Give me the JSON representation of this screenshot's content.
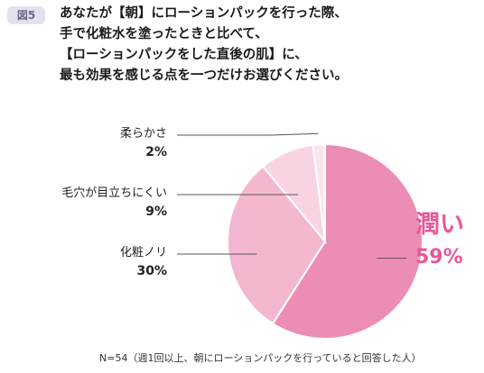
{
  "header": {
    "figure_label": "図5",
    "question_lines": [
      "あなたが【朝】にローションパックを行った際、",
      "手で化粧水を塗ったときと比べて、",
      "【ローションパックをした直後の肌】に、",
      "最も効果を感じる点を一つだけお選びください。"
    ]
  },
  "chart_data": {
    "type": "pie",
    "title": "",
    "slices": [
      {
        "label": "潤い",
        "value": 59,
        "value_label": "59%",
        "color": "#ec8db6"
      },
      {
        "label": "化粧ノリ",
        "value": 30,
        "value_label": "30%",
        "color": "#f3b8cf"
      },
      {
        "label": "毛穴が目立ちにくい",
        "value": 9,
        "value_label": "9%",
        "color": "#f8d4e2"
      },
      {
        "label": "柔らかさ",
        "value": 2,
        "value_label": "2%",
        "color": "#fbe5ee"
      }
    ],
    "start": "12 o'clock",
    "direction": "clockwise",
    "highlight_color": "#e8589a"
  },
  "footnote": "N=54（週1回以上、朝にローションパックを行っていると回答した人）"
}
